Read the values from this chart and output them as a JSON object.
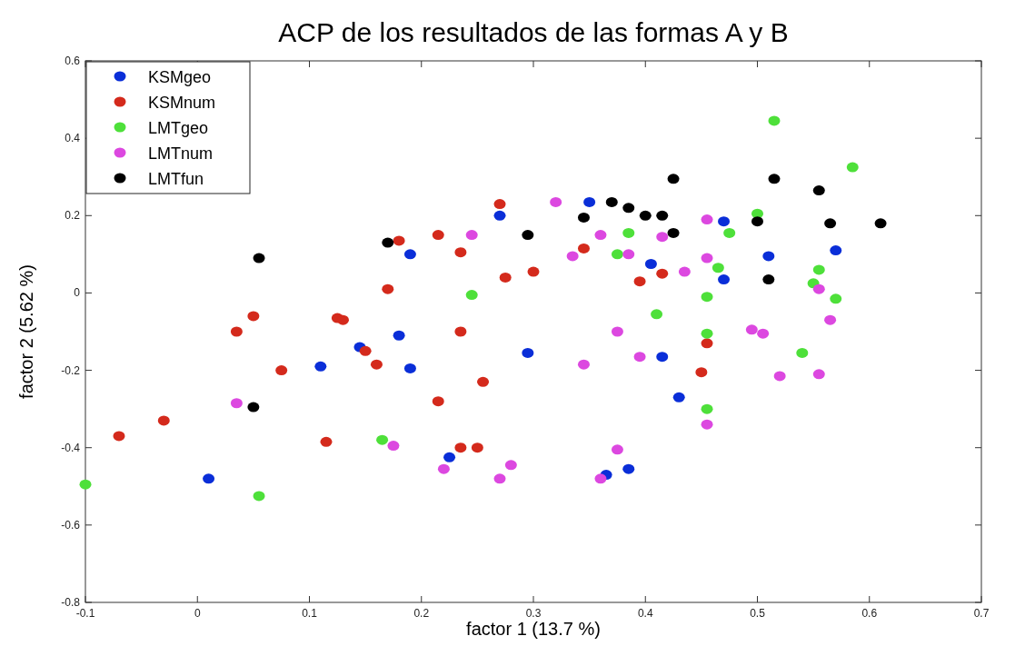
{
  "chart_data": {
    "type": "scatter",
    "title": "ACP de los resultados de las formas A y B",
    "xlabel": "factor  1  (13.7 %)",
    "ylabel": "factor  2  (5.62 %)",
    "xlim": [
      -0.1,
      0.7
    ],
    "ylim": [
      -0.8,
      0.6
    ],
    "xticks": [
      -0.1,
      0,
      0.1,
      0.2,
      0.3,
      0.4,
      0.5,
      0.6,
      0.7
    ],
    "yticks": [
      -0.8,
      -0.6,
      -0.4,
      -0.2,
      0,
      0.2,
      0.4,
      0.6
    ],
    "grid": false,
    "legend": "top left",
    "marker": "circle",
    "series": [
      {
        "name": "KSMgeo",
        "color": "#0a2ed8",
        "x": [
          0.35,
          0.27,
          0.19,
          0.405,
          0.47,
          0.51,
          0.57,
          0.47,
          0.18,
          0.145,
          0.11,
          0.19,
          0.295,
          0.415,
          0.43,
          0.225,
          0.365,
          0.385,
          0.01
        ],
        "values": [
          0.235,
          0.2,
          0.1,
          0.075,
          0.185,
          0.095,
          0.11,
          0.035,
          -0.11,
          -0.14,
          -0.19,
          -0.195,
          -0.155,
          -0.165,
          -0.27,
          -0.425,
          -0.47,
          -0.455,
          -0.48
        ]
      },
      {
        "name": "KSMnum",
        "color": "#d42a1c",
        "x": [
          0.27,
          0.18,
          0.215,
          0.235,
          0.17,
          0.275,
          0.3,
          0.345,
          0.395,
          0.415,
          0.05,
          0.035,
          0.125,
          0.13,
          0.235,
          0.15,
          0.16,
          0.075,
          0.255,
          0.215,
          0.455,
          0.45,
          -0.03,
          -0.07,
          0.115,
          0.235,
          0.25
        ],
        "values": [
          0.23,
          0.135,
          0.15,
          0.105,
          0.01,
          0.04,
          0.055,
          0.115,
          0.03,
          0.05,
          -0.06,
          -0.1,
          -0.065,
          -0.07,
          -0.1,
          -0.15,
          -0.185,
          -0.2,
          -0.23,
          -0.28,
          -0.13,
          -0.205,
          -0.33,
          -0.37,
          -0.385,
          -0.4,
          -0.4
        ]
      },
      {
        "name": "LMTgeo",
        "color": "#4ee03a",
        "x": [
          0.515,
          0.585,
          0.5,
          0.385,
          0.475,
          0.375,
          0.465,
          0.555,
          0.55,
          0.245,
          0.455,
          0.57,
          0.41,
          0.455,
          0.54,
          0.455,
          0.165,
          -0.1,
          0.055
        ],
        "values": [
          0.445,
          0.325,
          0.205,
          0.155,
          0.155,
          0.1,
          0.065,
          0.06,
          0.025,
          -0.005,
          -0.01,
          -0.015,
          -0.055,
          -0.105,
          -0.155,
          -0.3,
          -0.38,
          -0.495,
          -0.525
        ]
      },
      {
        "name": "LMTnum",
        "color": "#dc48e0",
        "x": [
          0.32,
          0.245,
          0.36,
          0.455,
          0.335,
          0.385,
          0.415,
          0.435,
          0.455,
          0.555,
          0.565,
          0.495,
          0.505,
          0.375,
          0.395,
          0.345,
          0.52,
          0.555,
          0.455,
          0.035,
          0.175,
          0.375,
          0.22,
          0.28,
          0.27,
          0.36
        ],
        "values": [
          0.235,
          0.15,
          0.15,
          0.19,
          0.095,
          0.1,
          0.145,
          0.055,
          0.09,
          0.01,
          -0.07,
          -0.095,
          -0.105,
          -0.1,
          -0.165,
          -0.185,
          -0.215,
          -0.21,
          -0.34,
          -0.285,
          -0.395,
          -0.405,
          -0.455,
          -0.445,
          -0.48,
          -0.48
        ]
      },
      {
        "name": "LMTfun",
        "color": "#000000",
        "x": [
          0.425,
          0.515,
          0.555,
          0.37,
          0.385,
          0.415,
          0.4,
          0.345,
          0.295,
          0.425,
          0.5,
          0.565,
          0.61,
          0.17,
          0.055,
          0.51,
          0.05
        ],
        "values": [
          0.295,
          0.295,
          0.265,
          0.235,
          0.22,
          0.2,
          0.2,
          0.195,
          0.15,
          0.155,
          0.185,
          0.18,
          0.18,
          0.13,
          0.09,
          0.035,
          -0.295
        ]
      }
    ]
  }
}
